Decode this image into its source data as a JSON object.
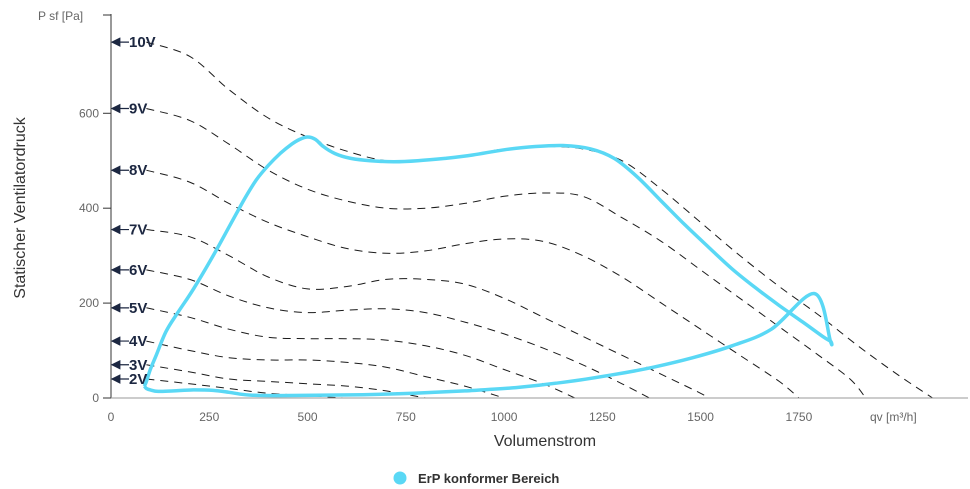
{
  "chart_data": {
    "type": "line",
    "xlabel": "Volumenstrom",
    "ylabel": "Statischer Ventilatordruck",
    "x_unit_label": "qv [m³/h]",
    "y_unit_label": "P sf [Pa]",
    "xlim": [
      0,
      2170
    ],
    "ylim": [
      0,
      805
    ],
    "x_ticks": [
      0,
      250,
      500,
      750,
      1000,
      1250,
      1500,
      1750
    ],
    "y_ticks": [
      0,
      200,
      400,
      600
    ],
    "grid": false,
    "legend_position": "bottom-center",
    "legend": [
      {
        "label": "ErP konformer Bereich",
        "color": "#5ad8f5"
      }
    ],
    "series": [
      {
        "label": "10V",
        "label_y": 750,
        "points": [
          [
            90,
            750
          ],
          [
            200,
            720
          ],
          [
            300,
            650
          ],
          [
            400,
            590
          ],
          [
            500,
            550
          ],
          [
            600,
            520
          ],
          [
            700,
            500
          ],
          [
            800,
            500
          ],
          [
            900,
            510
          ],
          [
            1000,
            525
          ],
          [
            1100,
            530
          ],
          [
            1200,
            525
          ],
          [
            1300,
            500
          ],
          [
            1400,
            440
          ],
          [
            1500,
            370
          ],
          [
            1600,
            300
          ],
          [
            1700,
            235
          ],
          [
            1800,
            175
          ],
          [
            1900,
            110
          ],
          [
            2000,
            50
          ],
          [
            2090,
            0
          ]
        ]
      },
      {
        "label": "9V",
        "label_y": 610,
        "points": [
          [
            90,
            610
          ],
          [
            200,
            585
          ],
          [
            300,
            535
          ],
          [
            400,
            480
          ],
          [
            500,
            440
          ],
          [
            600,
            415
          ],
          [
            700,
            400
          ],
          [
            800,
            400
          ],
          [
            900,
            410
          ],
          [
            1000,
            425
          ],
          [
            1100,
            432
          ],
          [
            1200,
            425
          ],
          [
            1300,
            380
          ],
          [
            1400,
            330
          ],
          [
            1500,
            270
          ],
          [
            1600,
            210
          ],
          [
            1700,
            150
          ],
          [
            1800,
            90
          ],
          [
            1880,
            40
          ],
          [
            1920,
            0
          ]
        ]
      },
      {
        "label": "8V",
        "label_y": 480,
        "points": [
          [
            90,
            480
          ],
          [
            200,
            455
          ],
          [
            300,
            410
          ],
          [
            400,
            370
          ],
          [
            500,
            340
          ],
          [
            600,
            315
          ],
          [
            700,
            305
          ],
          [
            800,
            310
          ],
          [
            900,
            325
          ],
          [
            1000,
            335
          ],
          [
            1100,
            330
          ],
          [
            1200,
            300
          ],
          [
            1300,
            255
          ],
          [
            1400,
            200
          ],
          [
            1500,
            145
          ],
          [
            1600,
            90
          ],
          [
            1700,
            35
          ],
          [
            1750,
            0
          ]
        ]
      },
      {
        "label": "7V",
        "label_y": 355,
        "points": [
          [
            90,
            355
          ],
          [
            200,
            340
          ],
          [
            300,
            300
          ],
          [
            400,
            255
          ],
          [
            500,
            230
          ],
          [
            600,
            235
          ],
          [
            700,
            250
          ],
          [
            800,
            250
          ],
          [
            900,
            240
          ],
          [
            1000,
            210
          ],
          [
            1100,
            170
          ],
          [
            1200,
            130
          ],
          [
            1300,
            90
          ],
          [
            1400,
            50
          ],
          [
            1500,
            10
          ],
          [
            1520,
            0
          ]
        ]
      },
      {
        "label": "6V",
        "label_y": 270,
        "points": [
          [
            90,
            270
          ],
          [
            200,
            250
          ],
          [
            300,
            215
          ],
          [
            400,
            190
          ],
          [
            500,
            180
          ],
          [
            600,
            185
          ],
          [
            700,
            188
          ],
          [
            800,
            180
          ],
          [
            900,
            160
          ],
          [
            1000,
            135
          ],
          [
            1100,
            105
          ],
          [
            1200,
            70
          ],
          [
            1300,
            30
          ],
          [
            1370,
            0
          ]
        ]
      },
      {
        "label": "5V",
        "label_y": 190,
        "points": [
          [
            90,
            190
          ],
          [
            200,
            170
          ],
          [
            300,
            145
          ],
          [
            400,
            128
          ],
          [
            500,
            125
          ],
          [
            600,
            125
          ],
          [
            700,
            122
          ],
          [
            800,
            110
          ],
          [
            900,
            90
          ],
          [
            1000,
            60
          ],
          [
            1100,
            30
          ],
          [
            1180,
            0
          ]
        ]
      },
      {
        "label": "4V",
        "label_y": 120,
        "points": [
          [
            90,
            120
          ],
          [
            200,
            100
          ],
          [
            300,
            85
          ],
          [
            400,
            80
          ],
          [
            500,
            80
          ],
          [
            600,
            75
          ],
          [
            700,
            65
          ],
          [
            800,
            45
          ],
          [
            900,
            25
          ],
          [
            1000,
            0
          ]
        ]
      },
      {
        "label": "3V",
        "label_y": 70,
        "points": [
          [
            90,
            70
          ],
          [
            200,
            55
          ],
          [
            300,
            40
          ],
          [
            400,
            35
          ],
          [
            500,
            30
          ],
          [
            600,
            25
          ],
          [
            700,
            15
          ],
          [
            800,
            0
          ]
        ]
      },
      {
        "label": "2V",
        "label_y": 40,
        "points": [
          [
            90,
            40
          ],
          [
            200,
            30
          ],
          [
            300,
            20
          ],
          [
            400,
            10
          ],
          [
            500,
            5
          ],
          [
            590,
            0
          ]
        ]
      }
    ],
    "erp_region": {
      "label": "ErP konformer Bereich",
      "color": "#5ad8f5",
      "points": [
        [
          85,
          25
        ],
        [
          90,
          35
        ],
        [
          100,
          60
        ],
        [
          115,
          90
        ],
        [
          140,
          140
        ],
        [
          170,
          180
        ],
        [
          210,
          230
        ],
        [
          260,
          300
        ],
        [
          300,
          360
        ],
        [
          340,
          420
        ],
        [
          370,
          460
        ],
        [
          400,
          490
        ],
        [
          430,
          515
        ],
        [
          460,
          535
        ],
        [
          480,
          545
        ],
        [
          500,
          550
        ],
        [
          520,
          545
        ],
        [
          540,
          530
        ],
        [
          570,
          515
        ],
        [
          610,
          505
        ],
        [
          660,
          500
        ],
        [
          720,
          498
        ],
        [
          780,
          500
        ],
        [
          850,
          505
        ],
        [
          920,
          512
        ],
        [
          1000,
          523
        ],
        [
          1080,
          530
        ],
        [
          1150,
          532
        ],
        [
          1220,
          525
        ],
        [
          1280,
          505
        ],
        [
          1340,
          465
        ],
        [
          1400,
          415
        ],
        [
          1460,
          365
        ],
        [
          1520,
          318
        ],
        [
          1580,
          272
        ],
        [
          1640,
          232
        ],
        [
          1700,
          195
        ],
        [
          1760,
          160
        ],
        [
          1810,
          130
        ],
        [
          1830,
          120
        ],
        [
          1830,
          120
        ],
        [
          1790,
          220
        ],
        [
          1680,
          145
        ],
        [
          1580,
          110
        ],
        [
          1480,
          85
        ],
        [
          1380,
          65
        ],
        [
          1270,
          48
        ],
        [
          1150,
          33
        ],
        [
          1030,
          22
        ],
        [
          900,
          15
        ],
        [
          770,
          10
        ],
        [
          640,
          7
        ],
        [
          520,
          6
        ],
        [
          420,
          5
        ],
        [
          360,
          6
        ],
        [
          330,
          8
        ],
        [
          300,
          12
        ],
        [
          260,
          16
        ],
        [
          210,
          17
        ],
        [
          160,
          15
        ],
        [
          120,
          14
        ],
        [
          100,
          17
        ],
        [
          90,
          20
        ],
        [
          85,
          25
        ]
      ]
    }
  }
}
